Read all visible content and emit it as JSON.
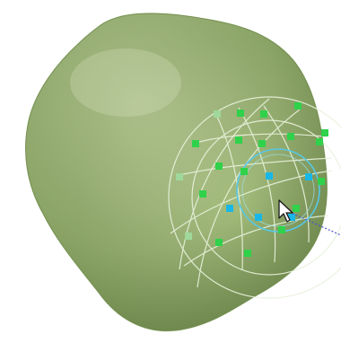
{
  "scene": {
    "background_color": "#ffffff",
    "mesh_color": "#a4bd7c",
    "mesh_shadow_color": "#6f8a4c",
    "mesh_highlight_color": "#c9dca6",
    "guide_line_color": "#e8f2dc",
    "brush_ring_color": "#56c8e6",
    "selected_handle_color": "#19b7e6",
    "unselected_handle_color": "#2fd24a",
    "inactive_handle_color": "#9fd89a",
    "pointer_ray_color": "#4b55d2"
  },
  "objects": {
    "mesh": {
      "name": "mesh",
      "icon": "sculpt-mesh"
    },
    "control_cage": {
      "name": "deformation-lattice",
      "icon": "lattice-grid"
    },
    "brush": {
      "name": "brush-radius",
      "icon": "circle-ring"
    },
    "cursor": {
      "name": "mouse-pointer",
      "icon": "arrow-cursor"
    }
  }
}
